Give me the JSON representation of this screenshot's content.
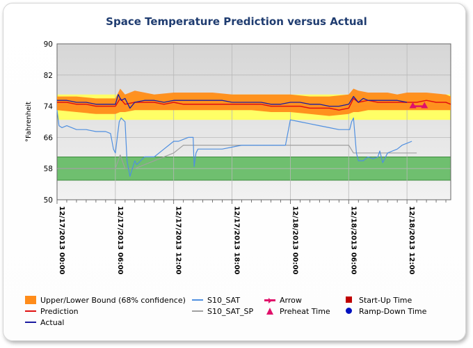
{
  "chart_data": {
    "type": "line",
    "title": "Space Temperature Prediction versus Actual",
    "ylabel": "°Fahrenheit",
    "xlabel": "",
    "ylim": [
      50,
      90
    ],
    "y_ticks": [
      "90",
      "82",
      "74",
      "66",
      "58",
      "50"
    ],
    "y_tick_values": [
      90,
      82,
      74,
      66,
      58,
      50
    ],
    "x_hours_range": [
      0,
      40.5
    ],
    "x_ticks": [
      {
        "label": "12/17/2013 00:00",
        "hour": 0
      },
      {
        "label": "12/17/2013 06:00",
        "hour": 6
      },
      {
        "label": "12/17/2013 12:00",
        "hour": 12
      },
      {
        "label": "12/17/2013 18:00",
        "hour": 18
      },
      {
        "label": "12/18/2013 00:00",
        "hour": 24
      },
      {
        "label": "12/18/2013 06:00",
        "hour": 30
      },
      {
        "label": "12/18/2013 12:00",
        "hour": 36
      },
      {
        "label": "12/18/2013 18:00",
        "hour": 42
      }
    ],
    "comfort_bands": [
      {
        "from": 70.5,
        "to": 77,
        "color": "#ffff66"
      },
      {
        "from": 55,
        "to": 61,
        "color": "#6fbf6f"
      }
    ],
    "series": [
      {
        "name": "Upper/Lower Bound (68% confidence)",
        "kind": "band",
        "color": "#ff8c1a",
        "x": [
          0,
          2,
          4,
          5,
          6,
          6.5,
          7,
          8,
          9,
          10,
          12,
          14,
          16,
          18,
          20,
          22,
          24,
          26,
          28,
          30,
          30.5,
          31,
          32,
          33,
          34,
          35,
          36,
          38,
          40,
          40.5
        ],
        "upper": [
          76.5,
          76.5,
          76,
          76,
          76,
          78.5,
          77,
          78,
          77.5,
          77,
          77.5,
          77.5,
          77.5,
          77,
          77,
          77,
          77,
          76.5,
          76.5,
          77,
          78.5,
          78,
          77.5,
          77.5,
          77.5,
          77,
          77.5,
          77.5,
          77,
          76.5
        ],
        "lower": [
          73,
          72.5,
          72,
          72,
          72,
          72.5,
          72.5,
          73,
          73,
          73,
          73,
          73,
          73,
          73,
          73,
          72.5,
          72.5,
          72,
          71.5,
          72,
          72.5,
          72.5,
          73,
          73,
          73,
          73,
          73,
          73,
          73,
          73
        ]
      },
      {
        "name": "S10_SAT",
        "kind": "line",
        "color": "#4f8fe0",
        "x": [
          0,
          0.2,
          0.5,
          1,
          2,
          3,
          4,
          5,
          5.5,
          5.8,
          6,
          6.2,
          6.4,
          6.6,
          7,
          7.2,
          7.5,
          8,
          8.2,
          8.4,
          8.6,
          9,
          10,
          11,
          11.5,
          12,
          12.5,
          13,
          13.5,
          14,
          14.1,
          14.3,
          14.5,
          15,
          16,
          17,
          18,
          19,
          20,
          21,
          22,
          23,
          23.5,
          24,
          25,
          26,
          27,
          28,
          29,
          30,
          30.1,
          30.3,
          30.5,
          30.8,
          31,
          31.5,
          32,
          32.5,
          33,
          33.2,
          33.5,
          34,
          34.5,
          35,
          35.5,
          36,
          36.5
        ],
        "y": [
          73,
          69,
          68.5,
          69,
          68,
          68,
          67.5,
          67.5,
          67,
          63,
          62,
          66,
          70,
          71,
          70,
          60,
          56,
          60,
          59,
          59.5,
          60,
          61,
          61,
          63,
          64,
          65,
          65,
          65.5,
          66,
          66,
          58.5,
          62,
          63,
          63,
          63,
          63,
          63.5,
          64,
          64,
          64,
          64,
          64,
          64,
          70.5,
          70,
          69.5,
          69,
          68.5,
          68,
          68,
          68,
          70,
          71,
          62,
          60,
          60,
          61,
          60.5,
          61,
          62.5,
          59.5,
          62,
          62.5,
          63,
          64,
          64.5,
          65
        ]
      },
      {
        "name": "S10_SAT_SP",
        "kind": "line",
        "color": "#a0a0a0",
        "x": [
          0,
          6,
          6.5,
          7,
          8,
          12,
          13,
          14,
          14.5,
          18,
          24,
          30,
          30.5,
          31,
          36,
          37
        ],
        "y": [
          58,
          58,
          61.5,
          58,
          58,
          62,
          64,
          64,
          64,
          64,
          64,
          64,
          62,
          62,
          62,
          62
        ]
      },
      {
        "name": "Prediction",
        "kind": "line",
        "color": "#e01010",
        "x": [
          0,
          1,
          2,
          3,
          4,
          5,
          6,
          6.5,
          7,
          8,
          9,
          10,
          11,
          12,
          13,
          14,
          15,
          16,
          17,
          18,
          19,
          20,
          21,
          22,
          23,
          24,
          25,
          26,
          27,
          28,
          29,
          30,
          30.5,
          31,
          32,
          33,
          34,
          35,
          36,
          37,
          38,
          39,
          40,
          40.5
        ],
        "y": [
          75,
          75,
          74.5,
          74.5,
          74,
          74,
          74,
          76,
          74.5,
          75,
          75,
          75,
          74.5,
          75,
          74.5,
          74.5,
          74.5,
          74.5,
          74.5,
          74.5,
          74.5,
          74.5,
          74.5,
          74,
          74,
          74,
          74,
          73.5,
          73.5,
          73.5,
          73,
          73.5,
          76,
          75,
          75.5,
          75,
          75,
          75,
          75,
          75,
          75.5,
          75,
          75,
          74.5
        ]
      },
      {
        "name": "Actual",
        "kind": "line",
        "color": "#1a1aa0",
        "x": [
          0,
          1,
          2,
          3,
          4,
          5,
          6,
          6.3,
          6.6,
          7,
          7.5,
          8,
          9,
          10,
          11,
          12,
          13,
          14,
          15,
          16,
          17,
          18,
          19,
          20,
          21,
          22,
          23,
          24,
          25,
          26,
          27,
          28,
          29,
          30,
          30.5,
          31,
          31.5,
          32,
          33,
          34,
          35,
          36
        ],
        "y": [
          75.5,
          75.5,
          75,
          75,
          74.5,
          74.5,
          74.5,
          77,
          75.5,
          76,
          73.5,
          75,
          75.5,
          75.5,
          75,
          75.5,
          75.5,
          75.5,
          75.5,
          75.5,
          75.5,
          75,
          75,
          75,
          75,
          74.5,
          74.5,
          75,
          75,
          74.5,
          74.5,
          74,
          74,
          74.5,
          76.5,
          75,
          76,
          75.5,
          75.5,
          75.5,
          75.5,
          75
        ]
      },
      {
        "name": "Arrow",
        "kind": "arrow",
        "color": "#e0106a",
        "x": [
          36.5,
          38
        ],
        "y": [
          74,
          74
        ]
      },
      {
        "name": "Preheat Time",
        "kind": "marker",
        "marker": "triangle",
        "color": "#e0106a",
        "x": [
          36.6,
          37.8
        ],
        "y": [
          74.2,
          74.2
        ]
      },
      {
        "name": "Start-Up Time",
        "kind": "marker",
        "marker": "square",
        "color": "#c00000",
        "x": [],
        "y": []
      },
      {
        "name": "Ramp-Down Time",
        "kind": "marker",
        "marker": "circle",
        "color": "#0010c0",
        "x": [],
        "y": []
      }
    ],
    "legend_position": "bottom",
    "grid": true
  }
}
